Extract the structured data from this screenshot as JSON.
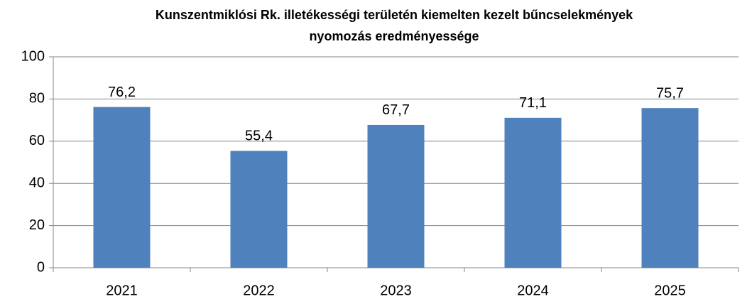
{
  "chart_data": {
    "type": "bar",
    "title": [
      "Kunszentmiklósi  Rk. illetékességi területén kiemelten kezelt bűncselekmények",
      "nyomozás eredményessége"
    ],
    "categories": [
      "2021",
      "2022",
      "2023",
      "2024",
      "2025"
    ],
    "values": [
      76.2,
      55.4,
      67.7,
      71.1,
      75.7
    ],
    "value_labels": [
      "76,2",
      "55,4",
      "67,7",
      "71,1",
      "75,7"
    ],
    "color": "#4f81bd",
    "ylim": [
      0,
      100
    ],
    "yticks": [
      0,
      20,
      40,
      60,
      80,
      100
    ],
    "grid": true
  }
}
